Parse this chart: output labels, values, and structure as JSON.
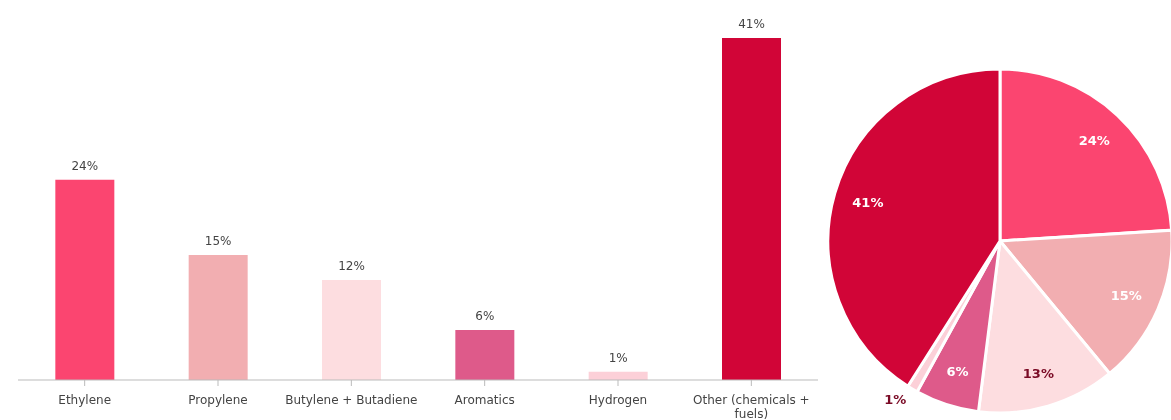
{
  "chart_data": [
    {
      "type": "bar",
      "categories": [
        "Ethylene",
        "Propylene",
        "Butylene + Butadiene",
        "Aromatics",
        "Hydrogen",
        "Other (chemicals + fuels)"
      ],
      "values": [
        24,
        15,
        12,
        6,
        1,
        41
      ],
      "colors": [
        "#fb4570",
        "#f2aeb1",
        "#fddde0",
        "#de5a8a",
        "#fcd0d8",
        "#d10537"
      ],
      "value_labels": [
        "24%",
        "15%",
        "12%",
        "6%",
        "1%",
        "41%"
      ],
      "tick_labels": "x"
    },
    {
      "type": "pie",
      "categories": [
        null,
        null,
        null,
        null,
        null,
        null
      ],
      "values": [
        24,
        15,
        13,
        6,
        1,
        41
      ],
      "colors": [
        "#fb4570",
        "#f2aeb1",
        "#fddde0",
        "#de5a8a",
        "#fcd0d8",
        "#d10537"
      ],
      "value_labels": [
        "24%",
        "15%",
        "13%",
        "6%",
        "1%",
        "41%"
      ]
    }
  ]
}
